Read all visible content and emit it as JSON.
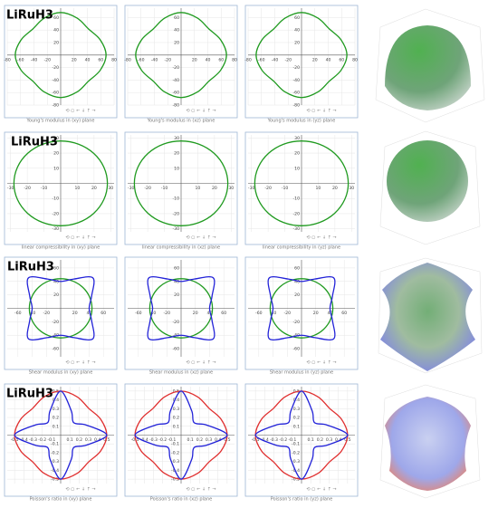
{
  "labels": [
    "LiRuH3",
    "LiRuH3",
    "LiRuH3",
    "LiRuH3"
  ],
  "toolbar": "⟲ ○ ← ↓ ↑ →",
  "chart_data": [
    {
      "type": "polar",
      "caption": "Young's modulus in (xy) plane",
      "xlim": [
        -80,
        80
      ],
      "ylim": [
        -80,
        75
      ],
      "xticks": [
        -80,
        -60,
        -40,
        -20,
        20,
        40,
        60,
        80
      ],
      "yticks": [
        -80,
        -60,
        -40,
        -20,
        20,
        40,
        60
      ],
      "grid": true,
      "theta": [
        0,
        22.5,
        45,
        67.5,
        90,
        112.5,
        135,
        157.5,
        180,
        202.5,
        225,
        247.5,
        270,
        292.5,
        315,
        337.5
      ],
      "series": [
        {
          "color": "#1f9a1f",
          "values": [
            68,
            64,
            59,
            64,
            68,
            64,
            59,
            64,
            68,
            64,
            59,
            64,
            68,
            64,
            59,
            64
          ]
        }
      ]
    },
    {
      "type": "polar",
      "caption": "Young's modulus in (xz) plane",
      "xlim": [
        -80,
        80
      ],
      "ylim": [
        -80,
        75
      ],
      "xticks": [
        -80,
        -60,
        -40,
        -20,
        20,
        40,
        60,
        80
      ],
      "yticks": [
        -80,
        -60,
        -40,
        -20,
        20,
        40,
        60
      ],
      "grid": true,
      "theta": [
        0,
        22.5,
        45,
        67.5,
        90,
        112.5,
        135,
        157.5,
        180,
        202.5,
        225,
        247.5,
        270,
        292.5,
        315,
        337.5
      ],
      "series": [
        {
          "color": "#1f9a1f",
          "values": [
            68,
            64,
            59,
            64,
            68,
            64,
            59,
            64,
            68,
            64,
            59,
            64,
            68,
            64,
            59,
            64
          ]
        }
      ]
    },
    {
      "type": "polar",
      "caption": "Young's modulus in (yz) plane",
      "xlim": [
        -80,
        80
      ],
      "ylim": [
        -80,
        75
      ],
      "xticks": [
        -80,
        -60,
        -40,
        -20,
        20,
        40,
        60,
        80
      ],
      "yticks": [
        -80,
        -60,
        -40,
        -20,
        20,
        40,
        60
      ],
      "grid": true,
      "theta": [
        0,
        22.5,
        45,
        67.5,
        90,
        112.5,
        135,
        157.5,
        180,
        202.5,
        225,
        247.5,
        270,
        292.5,
        315,
        337.5
      ],
      "series": [
        {
          "color": "#1f9a1f",
          "values": [
            68,
            64,
            59,
            64,
            68,
            64,
            59,
            64,
            68,
            64,
            59,
            64,
            68,
            64,
            59,
            64
          ]
        }
      ]
    },
    {
      "type": "polar",
      "caption": "linear compressibility in (xy) plane",
      "xlim": [
        -32,
        32
      ],
      "ylim": [
        -32,
        32
      ],
      "xticks": [
        -30,
        -20,
        -10,
        10,
        20,
        30
      ],
      "yticks": [
        -30,
        -20,
        -10,
        10,
        20,
        30
      ],
      "grid": true,
      "theta": [
        0,
        22.5,
        45,
        67.5,
        90,
        112.5,
        135,
        157.5,
        180,
        202.5,
        225,
        247.5,
        270,
        292.5,
        315,
        337.5
      ],
      "series": [
        {
          "color": "#1f9a1f",
          "values": [
            28,
            28,
            28,
            28,
            28,
            28,
            28,
            28,
            28,
            28,
            28,
            28,
            28,
            28,
            28,
            28
          ]
        }
      ]
    },
    {
      "type": "polar",
      "caption": "linear compressibility in (xz) plane",
      "xlim": [
        -32,
        32
      ],
      "ylim": [
        -32,
        32
      ],
      "xticks": [
        -30,
        -20,
        -10,
        10,
        20,
        30
      ],
      "yticks": [
        -30,
        -20,
        -10,
        10,
        20,
        30
      ],
      "grid": true,
      "theta": [
        0,
        22.5,
        45,
        67.5,
        90,
        112.5,
        135,
        157.5,
        180,
        202.5,
        225,
        247.5,
        270,
        292.5,
        315,
        337.5
      ],
      "series": [
        {
          "color": "#1f9a1f",
          "values": [
            28,
            28,
            28,
            28,
            28,
            28,
            28,
            28,
            28,
            28,
            28,
            28,
            28,
            28,
            28,
            28
          ]
        }
      ]
    },
    {
      "type": "polar",
      "caption": "linear compressibility in (yz) plane",
      "xlim": [
        -32,
        32
      ],
      "ylim": [
        -32,
        32
      ],
      "xticks": [
        -30,
        -20,
        -10,
        10,
        20,
        30
      ],
      "yticks": [
        -30,
        -20,
        -10,
        10,
        20,
        30
      ],
      "grid": true,
      "theta": [
        0,
        22.5,
        45,
        67.5,
        90,
        112.5,
        135,
        157.5,
        180,
        202.5,
        225,
        247.5,
        270,
        292.5,
        315,
        337.5
      ],
      "series": [
        {
          "color": "#1f9a1f",
          "values": [
            28,
            28,
            28,
            28,
            28,
            28,
            28,
            28,
            28,
            28,
            28,
            28,
            28,
            28,
            28,
            28
          ]
        }
      ]
    },
    {
      "type": "polar",
      "caption": "Shear modulus in (xy) plane",
      "xlim": [
        -75,
        75
      ],
      "ylim": [
        -72,
        72
      ],
      "xticks": [
        -60,
        -40,
        -20,
        20,
        40,
        60
      ],
      "yticks": [
        -60,
        -40,
        -20,
        20,
        40,
        60
      ],
      "grid": true,
      "theta": [
        0,
        22.5,
        45,
        67.5,
        90,
        112.5,
        135,
        157.5,
        180,
        202.5,
        225,
        247.5,
        270,
        292.5,
        315,
        337.5
      ],
      "series": [
        {
          "color": "#1f9a1f",
          "values": [
            44,
            44,
            44,
            44,
            44,
            44,
            44,
            44,
            44,
            44,
            44,
            44,
            44,
            44,
            44,
            44
          ]
        },
        {
          "color": "#2323d8",
          "values": [
            40,
            47,
            64,
            47,
            40,
            47,
            64,
            47,
            40,
            47,
            64,
            47,
            40,
            47,
            64,
            47
          ]
        }
      ]
    },
    {
      "type": "polar",
      "caption": "Shear modulus in (xz) plane",
      "xlim": [
        -75,
        75
      ],
      "ylim": [
        -72,
        72
      ],
      "xticks": [
        -60,
        -40,
        -20,
        20,
        40,
        60
      ],
      "yticks": [
        -60,
        -40,
        -20,
        20,
        40,
        60
      ],
      "grid": true,
      "theta": [
        0,
        22.5,
        45,
        67.5,
        90,
        112.5,
        135,
        157.5,
        180,
        202.5,
        225,
        247.5,
        270,
        292.5,
        315,
        337.5
      ],
      "series": [
        {
          "color": "#1f9a1f",
          "values": [
            44,
            44,
            44,
            44,
            44,
            44,
            44,
            44,
            44,
            44,
            44,
            44,
            44,
            44,
            44,
            44
          ]
        },
        {
          "color": "#2323d8",
          "values": [
            40,
            47,
            64,
            47,
            40,
            47,
            64,
            47,
            40,
            47,
            64,
            47,
            40,
            47,
            64,
            47
          ]
        }
      ]
    },
    {
      "type": "polar",
      "caption": "Shear modulus in (yz) plane",
      "xlim": [
        -75,
        75
      ],
      "ylim": [
        -72,
        72
      ],
      "xticks": [
        -60,
        -40,
        -20,
        20,
        40,
        60
      ],
      "yticks": [
        -60,
        -40,
        -20,
        20,
        40,
        60
      ],
      "grid": true,
      "theta": [
        0,
        22.5,
        45,
        67.5,
        90,
        112.5,
        135,
        157.5,
        180,
        202.5,
        225,
        247.5,
        270,
        292.5,
        315,
        337.5
      ],
      "series": [
        {
          "color": "#1f9a1f",
          "values": [
            44,
            44,
            44,
            44,
            44,
            44,
            44,
            44,
            44,
            44,
            44,
            44,
            44,
            44,
            44,
            44
          ]
        },
        {
          "color": "#2323d8",
          "values": [
            40,
            47,
            64,
            47,
            40,
            47,
            64,
            47,
            40,
            47,
            64,
            47,
            40,
            47,
            64,
            47
          ]
        }
      ]
    },
    {
      "type": "polar",
      "caption": "Poisson's ratio in (xy) plane",
      "xlim": [
        -0.58,
        0.58
      ],
      "ylim": [
        -0.55,
        0.55
      ],
      "xticks": [
        -0.5,
        -0.4,
        -0.3,
        -0.2,
        -0.1,
        0.1,
        0.2,
        0.3,
        0.4,
        0.5
      ],
      "yticks": [
        -0.5,
        -0.4,
        -0.3,
        -0.2,
        -0.1,
        0.1,
        0.2,
        0.3,
        0.4,
        0.5
      ],
      "grid": true,
      "theta": [
        0,
        22.5,
        45,
        67.5,
        90,
        112.5,
        135,
        157.5,
        180,
        202.5,
        225,
        247.5,
        270,
        292.5,
        315,
        337.5
      ],
      "series": [
        {
          "color": "#e03030",
          "values": [
            0.5,
            0.47,
            0.43,
            0.47,
            0.5,
            0.47,
            0.43,
            0.47,
            0.5,
            0.47,
            0.43,
            0.47,
            0.5,
            0.47,
            0.43,
            0.47
          ]
        },
        {
          "color": "#2323d8",
          "values": [
            0.5,
            0.3,
            0.2,
            0.3,
            0.5,
            0.3,
            0.2,
            0.3,
            0.5,
            0.3,
            0.2,
            0.3,
            0.5,
            0.3,
            0.2,
            0.3
          ]
        }
      ]
    },
    {
      "type": "polar",
      "caption": "Poisson's ratio in (xz) plane",
      "xlim": [
        -0.58,
        0.58
      ],
      "ylim": [
        -0.55,
        0.55
      ],
      "xticks": [
        -0.5,
        -0.4,
        -0.3,
        -0.2,
        -0.1,
        0.1,
        0.2,
        0.3,
        0.4,
        0.5
      ],
      "yticks": [
        -0.5,
        -0.4,
        -0.3,
        -0.2,
        -0.1,
        0.1,
        0.2,
        0.3,
        0.4,
        0.5
      ],
      "grid": true,
      "theta": [
        0,
        22.5,
        45,
        67.5,
        90,
        112.5,
        135,
        157.5,
        180,
        202.5,
        225,
        247.5,
        270,
        292.5,
        315,
        337.5
      ],
      "series": [
        {
          "color": "#e03030",
          "values": [
            0.5,
            0.47,
            0.43,
            0.47,
            0.5,
            0.47,
            0.43,
            0.47,
            0.5,
            0.47,
            0.43,
            0.47,
            0.5,
            0.47,
            0.43,
            0.47
          ]
        },
        {
          "color": "#2323d8",
          "values": [
            0.5,
            0.3,
            0.2,
            0.3,
            0.5,
            0.3,
            0.2,
            0.3,
            0.5,
            0.3,
            0.2,
            0.3,
            0.5,
            0.3,
            0.2,
            0.3
          ]
        }
      ]
    },
    {
      "type": "polar",
      "caption": "Poisson's ratio in (yz) plane",
      "xlim": [
        -0.58,
        0.58
      ],
      "ylim": [
        -0.55,
        0.55
      ],
      "xticks": [
        -0.5,
        -0.4,
        -0.3,
        -0.2,
        -0.1,
        0.1,
        0.2,
        0.3,
        0.4,
        0.5
      ],
      "yticks": [
        -0.5,
        -0.4,
        -0.3,
        -0.2,
        -0.1,
        0.1,
        0.2,
        0.3,
        0.4,
        0.5
      ],
      "grid": true,
      "theta": [
        0,
        22.5,
        45,
        67.5,
        90,
        112.5,
        135,
        157.5,
        180,
        202.5,
        225,
        247.5,
        270,
        292.5,
        315,
        337.5
      ],
      "series": [
        {
          "color": "#e03030",
          "values": [
            0.5,
            0.47,
            0.43,
            0.47,
            0.5,
            0.47,
            0.43,
            0.47,
            0.5,
            0.47,
            0.43,
            0.47,
            0.5,
            0.47,
            0.43,
            0.47
          ]
        },
        {
          "color": "#2323d8",
          "values": [
            0.5,
            0.3,
            0.2,
            0.3,
            0.5,
            0.3,
            0.2,
            0.3,
            0.5,
            0.3,
            0.2,
            0.3,
            0.5,
            0.3,
            0.2,
            0.3
          ]
        }
      ]
    }
  ]
}
